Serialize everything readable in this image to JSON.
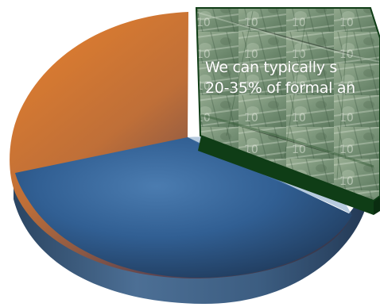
{
  "caption": {
    "line1": "We can typically s",
    "line2": "20-35% of formal an"
  },
  "colors": {
    "orange": "#e7812c",
    "blue": "#2f5f8f",
    "blue_dark": "#1c3350",
    "green_face": "#6f8f6c",
    "green_side": "#0f3d16"
  },
  "image": {
    "subject": "pie chart",
    "money_slice_icon": "money-texture-icon"
  }
}
